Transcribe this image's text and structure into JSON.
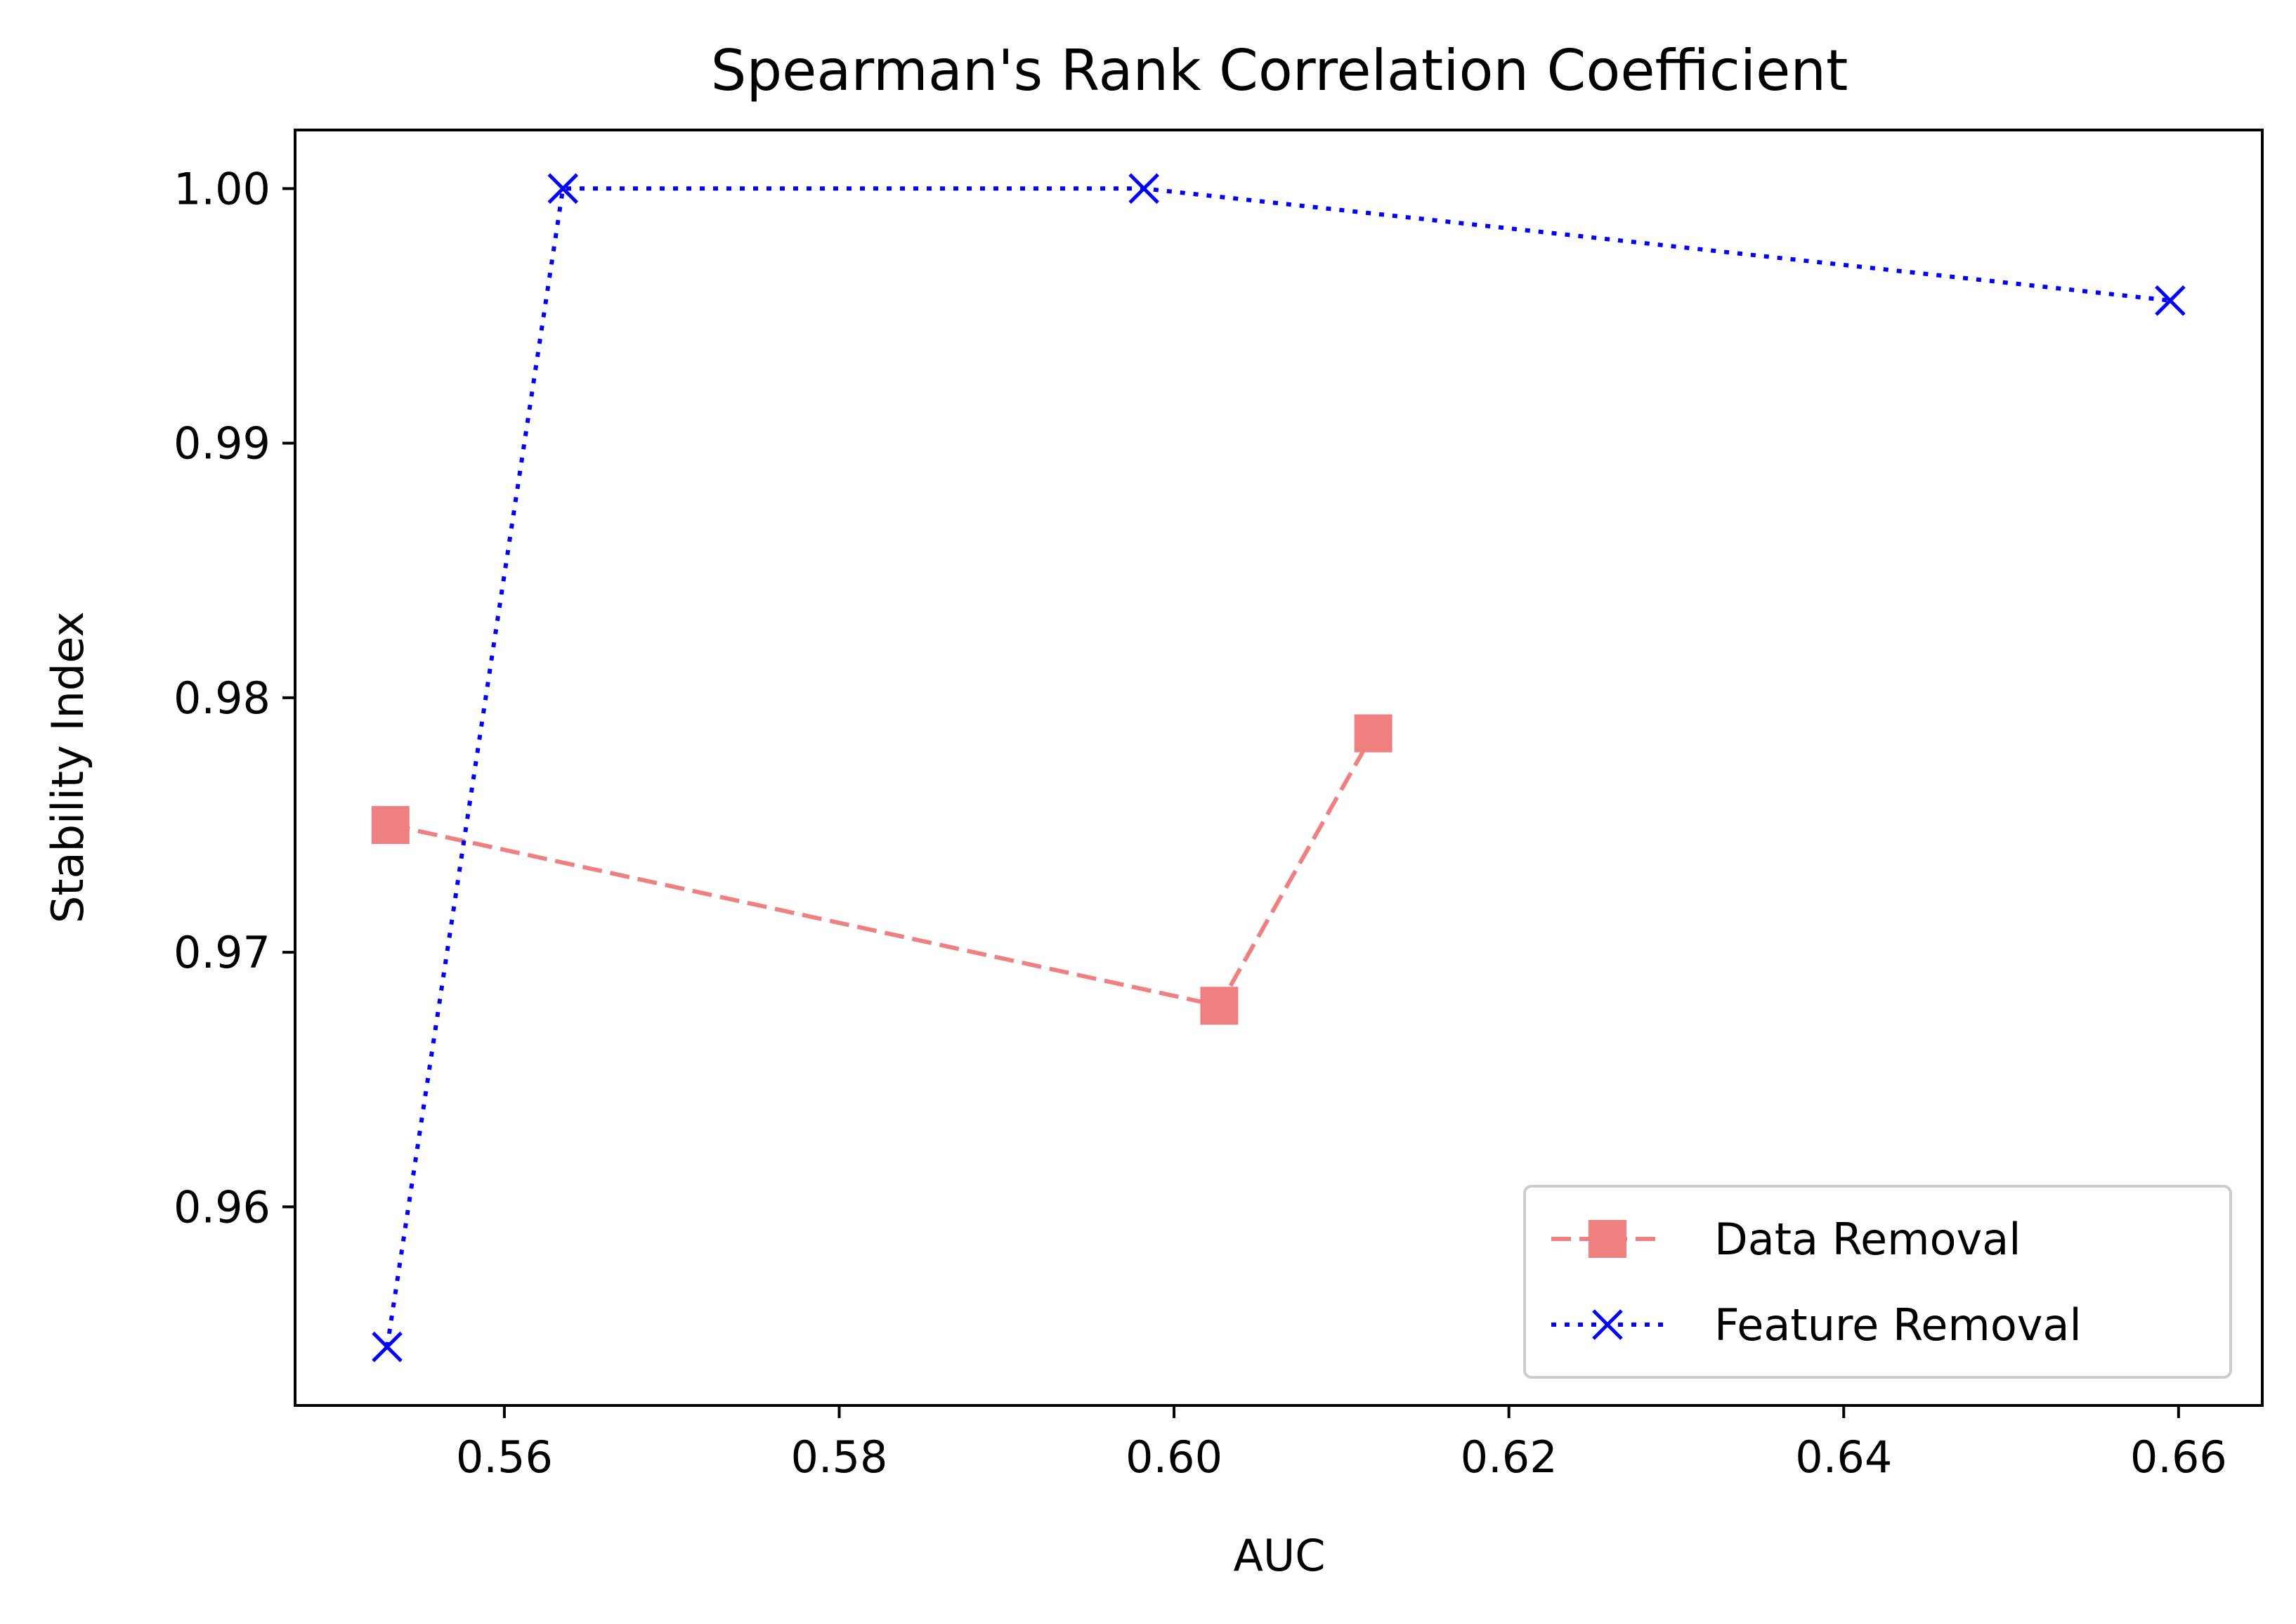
{
  "chart_data": {
    "type": "line",
    "title": "Spearman's Rank Correlation Coefficient",
    "xlabel": "AUC",
    "ylabel": "Stability Index",
    "xlim": [
      0.5475,
      0.665
    ],
    "ylim": [
      0.9522,
      1.0023
    ],
    "xticks": [
      0.56,
      0.58,
      0.6,
      0.62,
      0.64,
      0.66
    ],
    "xtick_labels": [
      "0.56",
      "0.58",
      "0.60",
      "0.62",
      "0.64",
      "0.66"
    ],
    "yticks": [
      0.96,
      0.97,
      0.98,
      0.99,
      1.0
    ],
    "ytick_labels": [
      "0.96",
      "0.97",
      "0.98",
      "0.99",
      "1.00"
    ],
    "grid": false,
    "legend_position": "lower-right",
    "series": [
      {
        "name": "Data Removal",
        "color": "#f08080",
        "line_style": "dashed",
        "marker": "square",
        "x": [
          0.5532,
          0.6027,
          0.6119
        ],
        "y": [
          0.975,
          0.9679,
          0.9786
        ]
      },
      {
        "name": "Feature Removal",
        "color": "#0000ff",
        "line_style": "dotted",
        "marker": "x",
        "x": [
          0.553,
          0.5635,
          0.5982,
          0.6595
        ],
        "y": [
          0.9545,
          1.0,
          1.0,
          0.9956
        ]
      }
    ]
  }
}
